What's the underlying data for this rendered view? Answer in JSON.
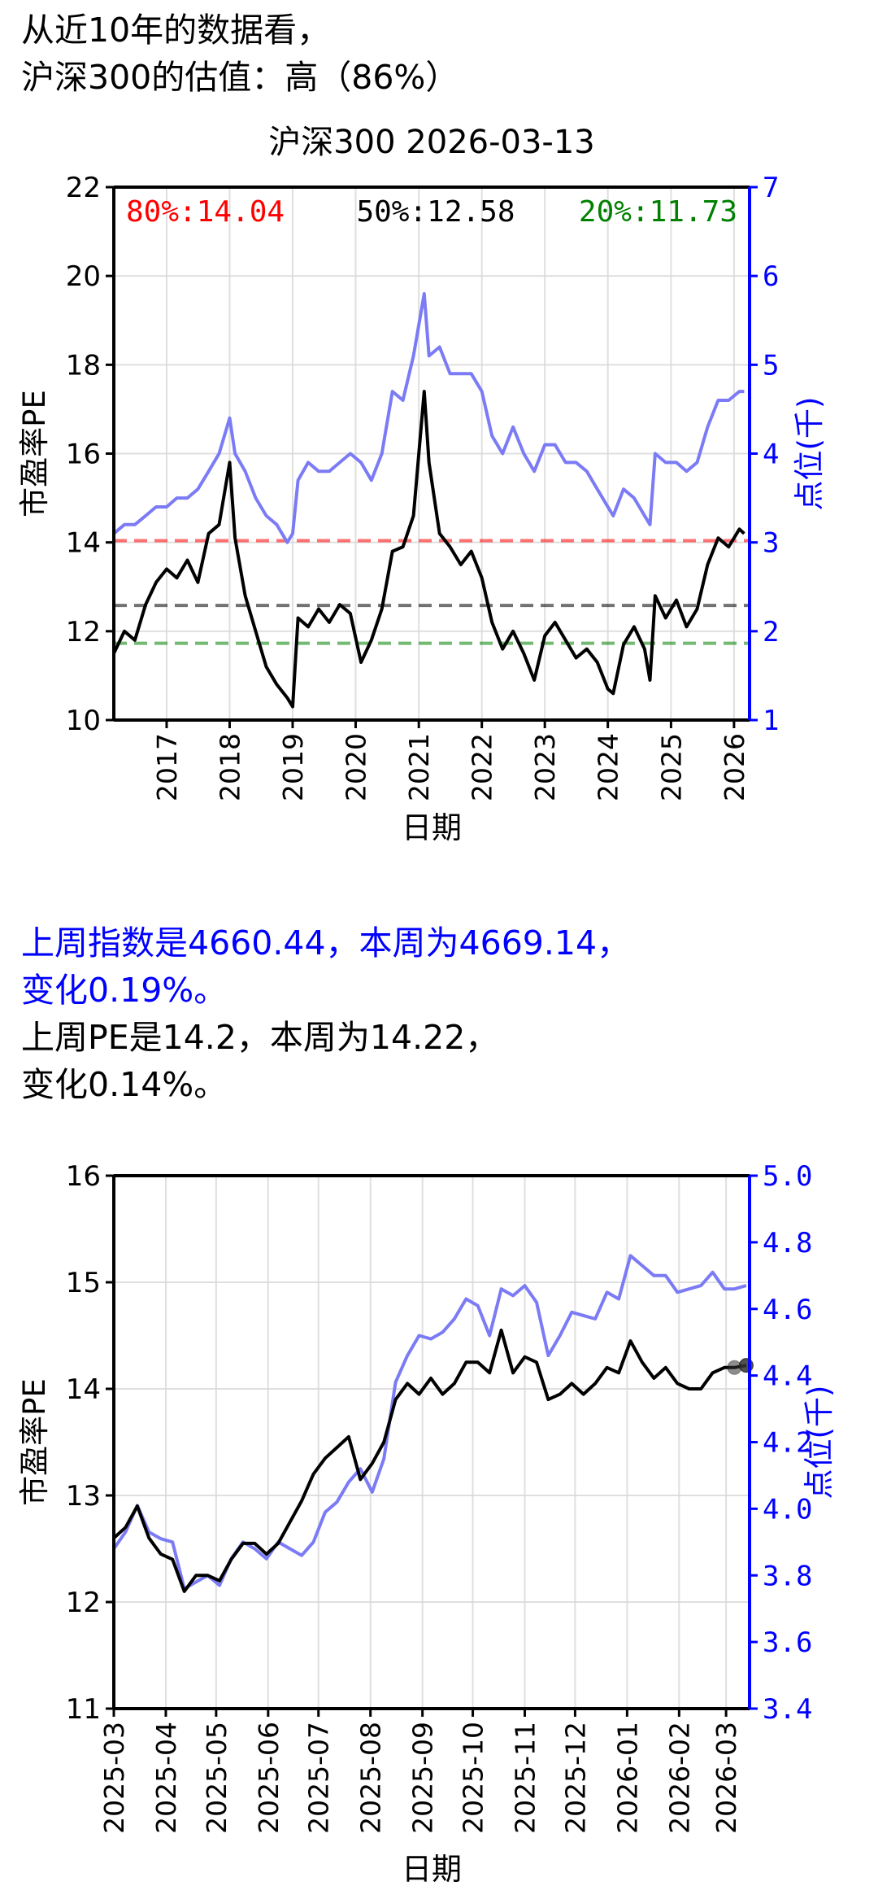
{
  "header": {
    "line1": "从近10年的数据看，",
    "line2": "沪深300的估值：高（86%）"
  },
  "summary": {
    "index_line1": "上周指数是4660.44，本周为4669.14，",
    "index_line2": "变化0.19%。",
    "pe_line1": "上周PE是14.2，本周为14.22，",
    "pe_line2": "变化0.14%。"
  },
  "colors": {
    "pe_line": "#000000",
    "index_line": "#7b7bf5",
    "right_axis": "#0000ff",
    "p80": "#ff0000",
    "p50": "#000000",
    "p20": "#008000"
  },
  "chart_data": [
    {
      "type": "line",
      "title": "沪深300 2026-03-13",
      "xlabel": "日期",
      "ylabel": "市盈率PE",
      "y2label": "点位(千)",
      "x_ticks": [
        "2017",
        "2018",
        "2019",
        "2020",
        "2021",
        "2022",
        "2023",
        "2024",
        "2025",
        "2026"
      ],
      "xlim": [
        "2016-03",
        "2026-04"
      ],
      "ylim": [
        10,
        22
      ],
      "y_ticks": [
        "10",
        "12",
        "14",
        "16",
        "18",
        "20",
        "22"
      ],
      "y2lim": [
        1,
        7
      ],
      "y2_ticks": [
        "1",
        "2",
        "3",
        "4",
        "5",
        "6",
        "7"
      ],
      "grid": true,
      "reference_lines": [
        {
          "label": "80%:14.04",
          "value": 14.04
        },
        {
          "label": "50%:12.58",
          "value": 12.58
        },
        {
          "label": "20%:11.73",
          "value": 11.73
        }
      ],
      "series": [
        {
          "axis": "left",
          "x": [
            "2016-03",
            "2016-05",
            "2016-07",
            "2016-09",
            "2016-11",
            "2017-01",
            "2017-03",
            "2017-05",
            "2017-07",
            "2017-09",
            "2017-11",
            "2018-01",
            "2018-02",
            "2018-04",
            "2018-06",
            "2018-08",
            "2018-10",
            "2018-12",
            "2019-01",
            "2019-02",
            "2019-04",
            "2019-06",
            "2019-08",
            "2019-10",
            "2019-12",
            "2020-02",
            "2020-04",
            "2020-06",
            "2020-08",
            "2020-10",
            "2020-12",
            "2021-02",
            "2021-03",
            "2021-05",
            "2021-07",
            "2021-09",
            "2021-11",
            "2022-01",
            "2022-03",
            "2022-05",
            "2022-07",
            "2022-09",
            "2022-11",
            "2023-01",
            "2023-03",
            "2023-05",
            "2023-07",
            "2023-09",
            "2023-11",
            "2024-01",
            "2024-02",
            "2024-04",
            "2024-06",
            "2024-08",
            "2024-09",
            "2024-10",
            "2024-12",
            "2025-02",
            "2025-04",
            "2025-06",
            "2025-08",
            "2025-10",
            "2025-12",
            "2026-02",
            "2026-03"
          ],
          "y": [
            11.5,
            12.0,
            11.8,
            12.6,
            13.1,
            13.4,
            13.2,
            13.6,
            13.1,
            14.2,
            14.4,
            15.8,
            14.1,
            12.8,
            12.0,
            11.2,
            10.8,
            10.5,
            10.3,
            12.3,
            12.1,
            12.5,
            12.2,
            12.6,
            12.4,
            11.3,
            11.8,
            12.5,
            13.8,
            13.9,
            14.6,
            17.4,
            15.8,
            14.2,
            13.9,
            13.5,
            13.8,
            13.2,
            12.2,
            11.6,
            12.0,
            11.5,
            10.9,
            11.9,
            12.2,
            11.8,
            11.4,
            11.6,
            11.3,
            10.7,
            10.6,
            11.7,
            12.1,
            11.6,
            10.9,
            12.8,
            12.3,
            12.7,
            12.1,
            12.5,
            13.5,
            14.1,
            13.9,
            14.3,
            14.2
          ]
        },
        {
          "axis": "right",
          "x": [
            "2016-03",
            "2016-05",
            "2016-07",
            "2016-09",
            "2016-11",
            "2017-01",
            "2017-03",
            "2017-05",
            "2017-07",
            "2017-09",
            "2017-11",
            "2018-01",
            "2018-02",
            "2018-04",
            "2018-06",
            "2018-08",
            "2018-10",
            "2018-12",
            "2019-01",
            "2019-02",
            "2019-04",
            "2019-06",
            "2019-08",
            "2019-10",
            "2019-12",
            "2020-02",
            "2020-04",
            "2020-06",
            "2020-08",
            "2020-10",
            "2020-12",
            "2021-02",
            "2021-03",
            "2021-05",
            "2021-07",
            "2021-09",
            "2021-11",
            "2022-01",
            "2022-03",
            "2022-05",
            "2022-07",
            "2022-09",
            "2022-11",
            "2023-01",
            "2023-03",
            "2023-05",
            "2023-07",
            "2023-09",
            "2023-11",
            "2024-01",
            "2024-02",
            "2024-04",
            "2024-06",
            "2024-08",
            "2024-09",
            "2024-10",
            "2024-12",
            "2025-02",
            "2025-04",
            "2025-06",
            "2025-08",
            "2025-10",
            "2025-12",
            "2026-02",
            "2026-03"
          ],
          "y": [
            3.1,
            3.2,
            3.2,
            3.3,
            3.4,
            3.4,
            3.5,
            3.5,
            3.6,
            3.8,
            4.0,
            4.4,
            4.0,
            3.8,
            3.5,
            3.3,
            3.2,
            3.0,
            3.1,
            3.7,
            3.9,
            3.8,
            3.8,
            3.9,
            4.0,
            3.9,
            3.7,
            4.0,
            4.7,
            4.6,
            5.1,
            5.8,
            5.1,
            5.2,
            4.9,
            4.9,
            4.9,
            4.7,
            4.2,
            4.0,
            4.3,
            4.0,
            3.8,
            4.1,
            4.1,
            3.9,
            3.9,
            3.8,
            3.6,
            3.4,
            3.3,
            3.6,
            3.5,
            3.3,
            3.2,
            4.0,
            3.9,
            3.9,
            3.8,
            3.9,
            4.3,
            4.6,
            4.6,
            4.7,
            4.7
          ]
        }
      ]
    },
    {
      "type": "line",
      "title": "",
      "xlabel": "日期",
      "ylabel": "市盈率PE",
      "y2label": "点位(千)",
      "x_ticks": [
        "2025-03",
        "2025-04",
        "2025-05",
        "2025-06",
        "2025-07",
        "2025-08",
        "2025-09",
        "2025-10",
        "2025-11",
        "2025-12",
        "2026-01",
        "2026-02",
        "2026-03"
      ],
      "xlim": [
        "2025-03-01",
        "2026-03-15"
      ],
      "ylim": [
        11,
        16
      ],
      "y_ticks": [
        "11",
        "12",
        "13",
        "14",
        "15",
        "16"
      ],
      "y2lim": [
        3.4,
        5.0
      ],
      "y2_ticks": [
        "3.4",
        "3.6",
        "3.8",
        "4.0",
        "4.2",
        "4.4",
        "4.6",
        "4.8",
        "5.0"
      ],
      "grid": true,
      "highlighted_points": [
        {
          "x": "2026-03-06",
          "y": 14.2
        },
        {
          "x": "2026-03-13",
          "y": 14.22
        }
      ],
      "series": [
        {
          "axis": "left",
          "x": [
            "2025-03-01",
            "2025-03-08",
            "2025-03-15",
            "2025-03-22",
            "2025-03-29",
            "2025-04-05",
            "2025-04-12",
            "2025-04-19",
            "2025-04-26",
            "2025-05-03",
            "2025-05-10",
            "2025-05-17",
            "2025-05-24",
            "2025-05-31",
            "2025-06-07",
            "2025-06-14",
            "2025-06-21",
            "2025-06-28",
            "2025-07-05",
            "2025-07-12",
            "2025-07-19",
            "2025-07-26",
            "2025-08-02",
            "2025-08-09",
            "2025-08-16",
            "2025-08-23",
            "2025-08-30",
            "2025-09-06",
            "2025-09-13",
            "2025-09-20",
            "2025-09-27",
            "2025-10-04",
            "2025-10-11",
            "2025-10-18",
            "2025-10-25",
            "2025-11-01",
            "2025-11-08",
            "2025-11-15",
            "2025-11-22",
            "2025-11-29",
            "2025-12-06",
            "2025-12-13",
            "2025-12-20",
            "2025-12-27",
            "2026-01-03",
            "2026-01-10",
            "2026-01-17",
            "2026-01-24",
            "2026-01-31",
            "2026-02-07",
            "2026-02-14",
            "2026-02-21",
            "2026-02-28",
            "2026-03-06",
            "2026-03-13"
          ],
          "y": [
            12.6,
            12.7,
            12.9,
            12.6,
            12.45,
            12.4,
            12.1,
            12.25,
            12.25,
            12.2,
            12.4,
            12.55,
            12.55,
            12.45,
            12.55,
            12.75,
            12.95,
            13.2,
            13.35,
            13.45,
            13.55,
            13.15,
            13.3,
            13.5,
            13.9,
            14.05,
            13.95,
            14.1,
            13.95,
            14.05,
            14.25,
            14.25,
            14.15,
            14.55,
            14.15,
            14.3,
            14.25,
            13.9,
            13.95,
            14.05,
            13.95,
            14.05,
            14.2,
            14.15,
            14.45,
            14.25,
            14.1,
            14.2,
            14.05,
            14.0,
            14.0,
            14.15,
            14.2,
            14.2,
            14.22
          ]
        },
        {
          "axis": "right",
          "x": [
            "2025-03-01",
            "2025-03-08",
            "2025-03-15",
            "2025-03-22",
            "2025-03-29",
            "2025-04-05",
            "2025-04-12",
            "2025-04-19",
            "2025-04-26",
            "2025-05-03",
            "2025-05-10",
            "2025-05-17",
            "2025-05-24",
            "2025-05-31",
            "2025-06-07",
            "2025-06-14",
            "2025-06-21",
            "2025-06-28",
            "2025-07-05",
            "2025-07-12",
            "2025-07-19",
            "2025-07-26",
            "2025-08-02",
            "2025-08-09",
            "2025-08-16",
            "2025-08-23",
            "2025-08-30",
            "2025-09-06",
            "2025-09-13",
            "2025-09-20",
            "2025-09-27",
            "2025-10-04",
            "2025-10-11",
            "2025-10-18",
            "2025-10-25",
            "2025-11-01",
            "2025-11-08",
            "2025-11-15",
            "2025-11-22",
            "2025-11-29",
            "2025-12-06",
            "2025-12-13",
            "2025-12-20",
            "2025-12-27",
            "2026-01-03",
            "2026-01-10",
            "2026-01-17",
            "2026-01-24",
            "2026-01-31",
            "2026-02-07",
            "2026-02-14",
            "2026-02-21",
            "2026-02-28",
            "2026-03-06",
            "2026-03-13"
          ],
          "y": [
            3.88,
            3.93,
            4.01,
            3.93,
            3.91,
            3.9,
            3.76,
            3.78,
            3.8,
            3.77,
            3.85,
            3.9,
            3.88,
            3.85,
            3.9,
            3.88,
            3.86,
            3.9,
            3.99,
            4.02,
            4.08,
            4.12,
            4.05,
            4.15,
            4.38,
            4.46,
            4.52,
            4.51,
            4.53,
            4.57,
            4.63,
            4.61,
            4.52,
            4.66,
            4.64,
            4.67,
            4.62,
            4.46,
            4.52,
            4.59,
            4.58,
            4.57,
            4.65,
            4.63,
            4.76,
            4.73,
            4.7,
            4.7,
            4.65,
            4.66,
            4.67,
            4.71,
            4.66,
            4.66,
            4.67
          ]
        }
      ]
    }
  ]
}
